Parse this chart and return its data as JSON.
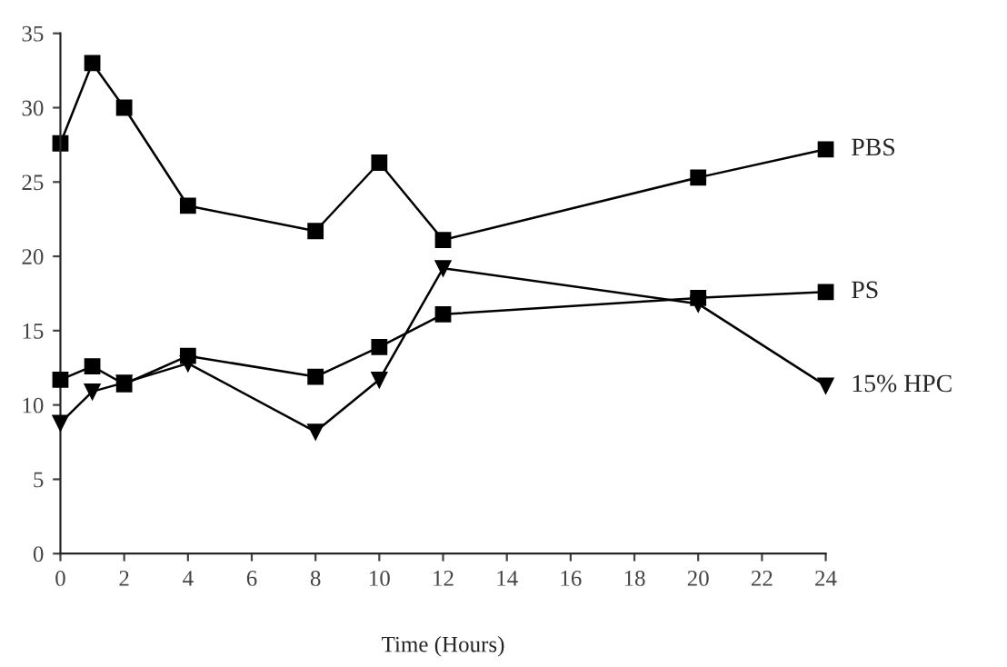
{
  "chart_data": {
    "type": "line",
    "xlabel": "Time (Hours)",
    "x": [
      0,
      1,
      2,
      4,
      8,
      10,
      12,
      20,
      24
    ],
    "series": [
      {
        "name": "PBS",
        "color": "#000000",
        "marker": "square",
        "values": [
          27.6,
          33,
          30,
          23.4,
          21.7,
          26.3,
          21.1,
          25.3,
          27.2
        ]
      },
      {
        "name": "PS",
        "color": "#000000",
        "marker": "square",
        "values": [
          11.7,
          12.6,
          11.4,
          13.3,
          11.9,
          13.9,
          16.1,
          17.2,
          17.6
        ]
      },
      {
        "name": "15% HPC",
        "color": "#000000",
        "marker": "triangle",
        "values": [
          8.8,
          10.9,
          11.5,
          12.8,
          8.2,
          11.7,
          19.2,
          16.8,
          11.3
        ]
      }
    ],
    "xlim": [
      0,
      24
    ],
    "xticks": [
      0,
      2,
      4,
      6,
      8,
      10,
      12,
      14,
      16,
      18,
      20,
      22,
      24
    ],
    "ylim": [
      0,
      35
    ],
    "yticks": [
      0,
      5,
      10,
      15,
      20,
      25,
      30,
      35
    ],
    "grid": false,
    "legend": false,
    "line_style": "solid"
  }
}
